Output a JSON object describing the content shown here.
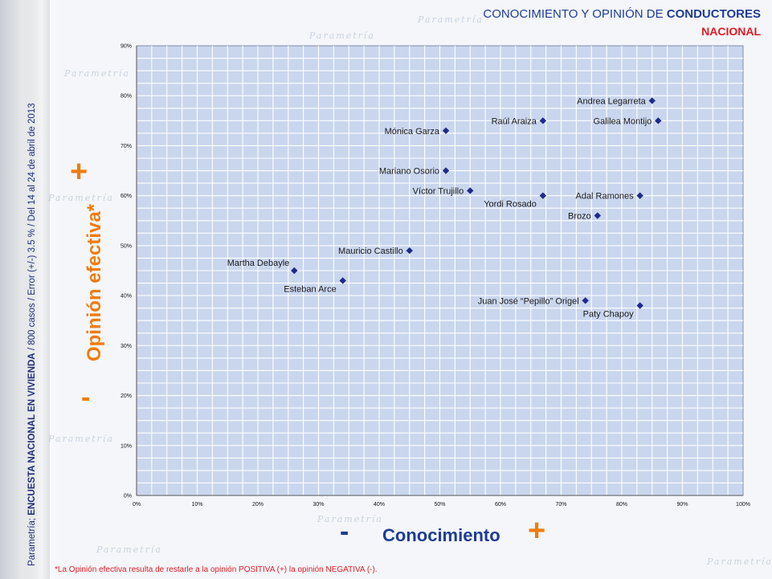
{
  "header": {
    "title_prefix": "CONOCIMIENTO Y OPINIÓN DE ",
    "title_bold": "CONDUCTORES",
    "subtitle": "NACIONAL"
  },
  "sidebar": {
    "prefix": "Parametría; ",
    "bold": "ENCUESTA NACIONAL EN VIVIENDA",
    "rest": " / 800 casos / Error (+/-) 3.5 % / Del 14 al 24  de abril de 2013"
  },
  "watermark": "Parametría",
  "axes": {
    "y_title": "Opinión efectiva*",
    "y_plus": "+",
    "y_minus": "-",
    "x_title": "Conocimiento",
    "x_plus": "+",
    "x_minus": "-"
  },
  "footnote": "*La Opinión efectiva resulta de restarle a la opinión POSITIVA (+) la opinión NEGATIVA (-).",
  "colors": {
    "marker": "#1f2a8a",
    "plot_bg": "#c9d6ee",
    "grid": "#ffffff",
    "accent_orange": "#f07c0f",
    "accent_blue": "#1f3c94",
    "accent_red": "#e31b23"
  },
  "chart_data": {
    "type": "scatter",
    "xlim": [
      0,
      100
    ],
    "ylim": [
      0,
      90
    ],
    "x_ticks": [
      "0%",
      "10%",
      "20%",
      "30%",
      "40%",
      "50%",
      "60%",
      "70%",
      "80%",
      "90%",
      "100%"
    ],
    "y_ticks": [
      "0%",
      "10%",
      "20%",
      "30%",
      "40%",
      "50%",
      "60%",
      "70%",
      "80%",
      "90%"
    ],
    "grid": true,
    "points": [
      {
        "label": "Andrea Legarreta",
        "x": 85,
        "y": 79,
        "label_side": "left"
      },
      {
        "label": "Galilea Montijo",
        "x": 86,
        "y": 75,
        "label_side": "left"
      },
      {
        "label": "Raúl Araiza",
        "x": 67,
        "y": 75,
        "label_side": "left"
      },
      {
        "label": "Mónica Garza",
        "x": 51,
        "y": 73,
        "label_side": "left"
      },
      {
        "label": "Mariano Osorio",
        "x": 51,
        "y": 65,
        "label_side": "left"
      },
      {
        "label": "Víctor Trujillo",
        "x": 55,
        "y": 61,
        "label_side": "left"
      },
      {
        "label": "Yordi Rosado",
        "x": 67,
        "y": 60,
        "label_side": "left-below"
      },
      {
        "label": "Adal Ramones",
        "x": 83,
        "y": 60,
        "label_side": "left"
      },
      {
        "label": "Brozo",
        "x": 76,
        "y": 56,
        "label_side": "left"
      },
      {
        "label": "Mauricio Castillo",
        "x": 45,
        "y": 49,
        "label_side": "left"
      },
      {
        "label": "Martha Debayle",
        "x": 26,
        "y": 45,
        "label_side": "left-above"
      },
      {
        "label": "Esteban Arce",
        "x": 34,
        "y": 43,
        "label_side": "left-below"
      },
      {
        "label": "Juan José “Pepillo” Origel",
        "x": 74,
        "y": 39,
        "label_side": "left"
      },
      {
        "label": "Paty Chapoy",
        "x": 83,
        "y": 38,
        "label_side": "left-below"
      }
    ]
  }
}
